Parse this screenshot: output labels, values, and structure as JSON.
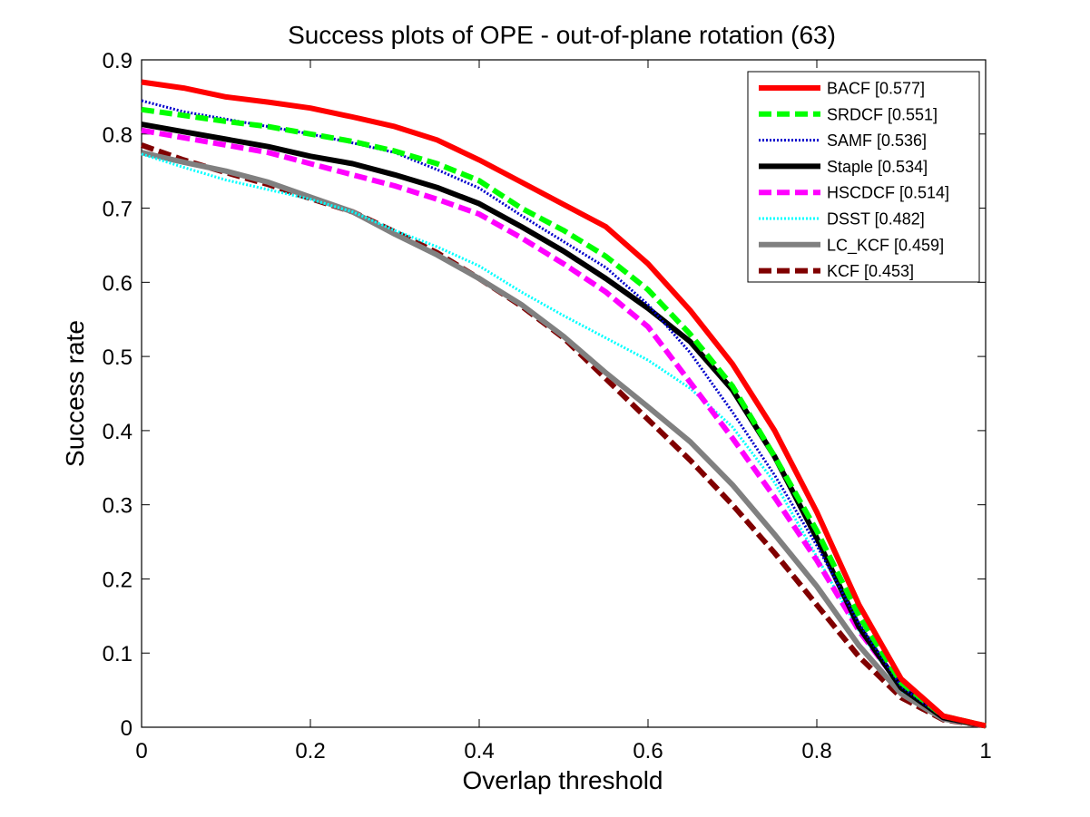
{
  "chart_data": {
    "type": "line",
    "title": "Success plots of OPE - out-of-plane rotation (63)",
    "xlabel": "Overlap threshold",
    "ylabel": "Success rate",
    "xlim": [
      0,
      1
    ],
    "ylim": [
      0,
      0.9
    ],
    "xticks": [
      0,
      0.2,
      0.4,
      0.6,
      0.8,
      1
    ],
    "xtick_labels": [
      "0",
      "0.2",
      "0.4",
      "0.6",
      "0.8",
      "1"
    ],
    "yticks": [
      0,
      0.1,
      0.2,
      0.3,
      0.4,
      0.5,
      0.6,
      0.7,
      0.8,
      0.9
    ],
    "ytick_labels": [
      "0",
      "0.1",
      "0.2",
      "0.3",
      "0.4",
      "0.5",
      "0.6",
      "0.7",
      "0.8",
      "0.9"
    ],
    "grid": false,
    "legend_position": "top-right",
    "x": [
      0,
      0.05,
      0.1,
      0.15,
      0.2,
      0.25,
      0.3,
      0.35,
      0.4,
      0.45,
      0.5,
      0.55,
      0.6,
      0.65,
      0.7,
      0.75,
      0.8,
      0.85,
      0.9,
      0.95,
      1.0
    ],
    "series": [
      {
        "name": "BACF [0.577]",
        "color": "#ff0000",
        "style": "solid",
        "values": [
          0.87,
          0.862,
          0.85,
          0.843,
          0.835,
          0.823,
          0.81,
          0.792,
          0.765,
          0.735,
          0.705,
          0.675,
          0.625,
          0.562,
          0.49,
          0.4,
          0.29,
          0.165,
          0.065,
          0.015,
          0.002
        ]
      },
      {
        "name": "SRDCF [0.551]",
        "color": "#00ff00",
        "style": "dashed",
        "values": [
          0.833,
          0.825,
          0.817,
          0.81,
          0.8,
          0.79,
          0.777,
          0.76,
          0.737,
          0.7,
          0.67,
          0.635,
          0.59,
          0.53,
          0.46,
          0.365,
          0.265,
          0.15,
          0.06,
          0.015,
          0.002
        ]
      },
      {
        "name": "SAMF [0.536]",
        "color": "#0000cc",
        "style": "dotted",
        "values": [
          0.845,
          0.83,
          0.82,
          0.81,
          0.8,
          0.788,
          0.775,
          0.752,
          0.727,
          0.69,
          0.655,
          0.62,
          0.57,
          0.505,
          0.425,
          0.34,
          0.245,
          0.14,
          0.055,
          0.013,
          0.002
        ]
      },
      {
        "name": "Staple [0.534]",
        "color": "#000000",
        "style": "solid",
        "values": [
          0.813,
          0.803,
          0.793,
          0.783,
          0.77,
          0.76,
          0.745,
          0.728,
          0.706,
          0.675,
          0.642,
          0.605,
          0.565,
          0.52,
          0.455,
          0.365,
          0.255,
          0.135,
          0.053,
          0.013,
          0.002
        ]
      },
      {
        "name": "HSCDCF [0.514]",
        "color": "#ff00ff",
        "style": "dashed",
        "values": [
          0.805,
          0.795,
          0.785,
          0.775,
          0.76,
          0.745,
          0.73,
          0.712,
          0.692,
          0.66,
          0.625,
          0.587,
          0.54,
          0.465,
          0.39,
          0.31,
          0.225,
          0.13,
          0.055,
          0.013,
          0.002
        ]
      },
      {
        "name": "DSST [0.482]",
        "color": "#00ffff",
        "style": "dotted",
        "values": [
          0.773,
          0.755,
          0.738,
          0.725,
          0.712,
          0.695,
          0.67,
          0.648,
          0.622,
          0.587,
          0.555,
          0.525,
          0.495,
          0.457,
          0.405,
          0.33,
          0.23,
          0.13,
          0.05,
          0.012,
          0.002
        ]
      },
      {
        "name": "LC_KCF [0.459]",
        "color": "#808080",
        "style": "solid",
        "values": [
          0.775,
          0.762,
          0.75,
          0.735,
          0.715,
          0.695,
          0.665,
          0.637,
          0.605,
          0.57,
          0.527,
          0.478,
          0.432,
          0.385,
          0.327,
          0.26,
          0.19,
          0.11,
          0.045,
          0.011,
          0.002
        ]
      },
      {
        "name": "KCF [0.453]",
        "color": "#800000",
        "style": "dashed",
        "values": [
          0.785,
          0.765,
          0.748,
          0.732,
          0.713,
          0.695,
          0.668,
          0.64,
          0.605,
          0.568,
          0.525,
          0.47,
          0.415,
          0.36,
          0.3,
          0.235,
          0.165,
          0.095,
          0.04,
          0.01,
          0.002
        ]
      }
    ]
  }
}
